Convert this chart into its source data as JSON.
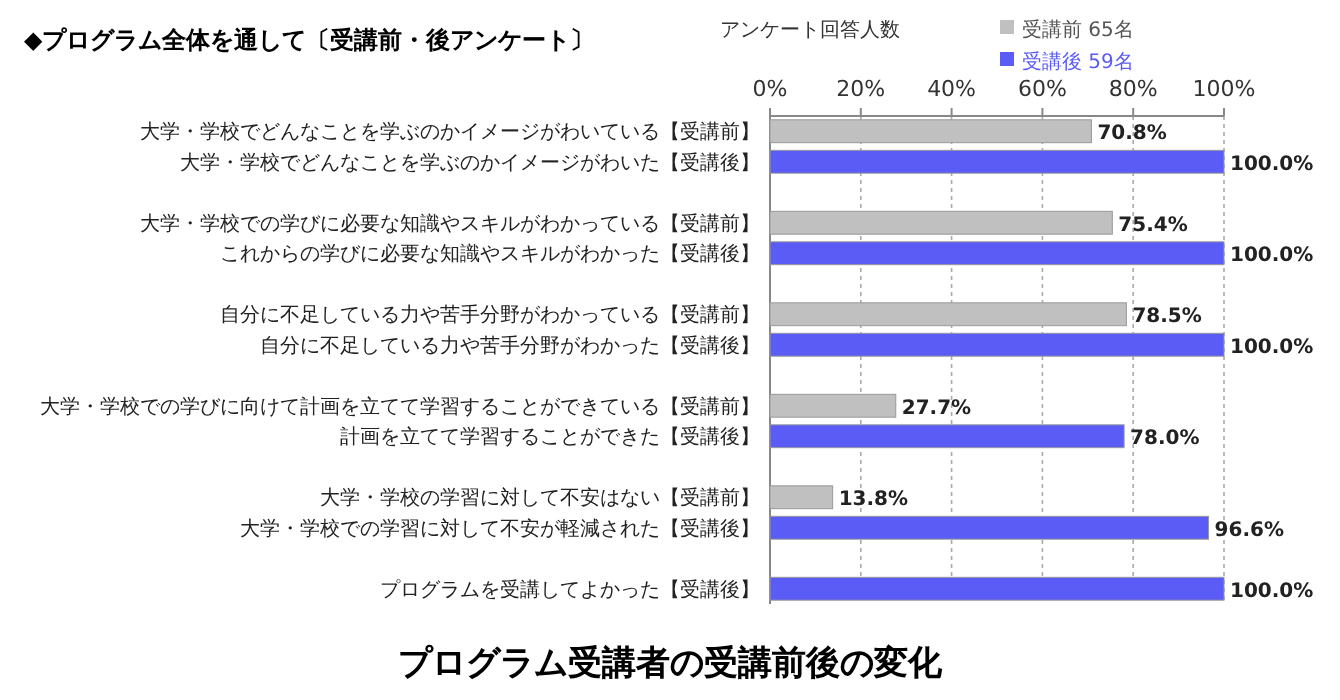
{
  "chart_data": {
    "type": "bar",
    "orientation": "horizontal",
    "title": "◆プログラム全体を通して〔受講前・後アンケート〕",
    "annotations": [
      "プログラム受講者の受講前後の変化"
    ],
    "legend_title": "アンケート回答人数",
    "legend": "top right",
    "grid": "x",
    "xlim": [
      0,
      100
    ],
    "xticks": [
      {
        "value": 0,
        "label": "0%"
      },
      {
        "value": 20,
        "label": "20%"
      },
      {
        "value": 40,
        "label": "40%"
      },
      {
        "value": 60,
        "label": "60%"
      },
      {
        "value": 80,
        "label": "80%"
      },
      {
        "value": 100,
        "label": "100%"
      }
    ],
    "categories": [
      "大学・学校でどんなことを学ぶのかイメージがわいている【受講前】",
      "大学・学校でどんなことを学ぶのかイメージがわいた【受講後】",
      null,
      "大学・学校での学びに必要な知識やスキルがわかっている【受講前】",
      "これからの学びに必要な知識やスキルがわかった【受講後】",
      null,
      "自分に不足している力や苦手分野がわかっている【受講前】",
      "自分に不足している力や苦手分野がわかった【受講後】",
      null,
      "大学・学校での学びに向けて計画を立てて学習することができている【受講前】",
      "計画を立てて学習することができた【受講後】",
      null,
      "大学・学校の学習に対して不安はない【受講前】",
      "大学・学校での学習に対して不安が軽減された【受講後】",
      null,
      "プログラムを受講してよかった【受講後】"
    ],
    "series": [
      {
        "name": "受講前 65名",
        "color": "#c0c0c0",
        "values": [
          70.8,
          null,
          null,
          75.4,
          null,
          null,
          78.5,
          null,
          null,
          27.7,
          null,
          null,
          13.8,
          null,
          null,
          null
        ],
        "value_labels": [
          "70.8%",
          null,
          null,
          "75.4%",
          null,
          null,
          "78.5%",
          null,
          null,
          "27.7%",
          null,
          null,
          "13.8%",
          null,
          null,
          null
        ]
      },
      {
        "name": "受講後 59名",
        "color": "#5b5bf5",
        "values": [
          null,
          100,
          null,
          null,
          100,
          null,
          null,
          100,
          null,
          null,
          78.0,
          null,
          null,
          96.6,
          null,
          100
        ],
        "value_labels": [
          null,
          "100.0%",
          null,
          null,
          "100.0%",
          null,
          null,
          "100.0%",
          null,
          null,
          "78.0%",
          null,
          null,
          "96.6%",
          null,
          "100.0%"
        ]
      }
    ]
  }
}
